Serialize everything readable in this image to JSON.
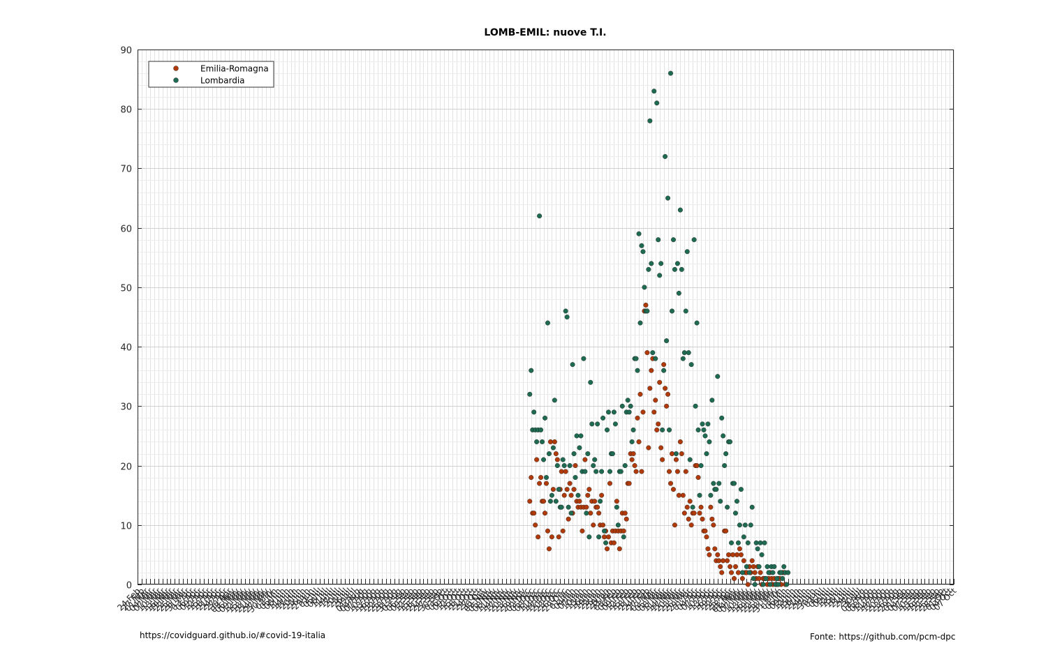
{
  "footer": {
    "left_text": "https://covidguard.github.io/#covid-19-italia",
    "right_text": "Fonte: https://github.com/pcm-dpc"
  },
  "chart_data": {
    "type": "scatter",
    "title": "LOMB-EMIL: nuove T.I.",
    "xlabel": "",
    "ylabel": "",
    "ylim": [
      0,
      90
    ],
    "yticks": [
      0,
      10,
      20,
      30,
      40,
      50,
      60,
      70,
      80,
      90
    ],
    "grid": true,
    "legend_position": "top-left",
    "x_axis": "date",
    "x_range": [
      "2020-02-24",
      "2021-10-07"
    ],
    "x_tick_labels": [
      "24 Feb",
      "07 Oct"
    ],
    "x_data_start": "2020-12-04",
    "series": [
      {
        "name": "Emilia-Romagna",
        "color": "#b03a0a",
        "values": [
          14,
          18,
          12,
          12,
          10,
          21,
          8,
          17,
          18,
          14,
          14,
          12,
          17,
          9,
          6,
          24,
          8,
          16,
          24,
          22,
          21,
          8,
          16,
          19,
          9,
          15,
          19,
          16,
          11,
          17,
          15,
          12,
          16,
          20,
          14,
          13,
          14,
          13,
          9,
          13,
          21,
          13,
          15,
          16,
          12,
          14,
          10,
          14,
          13,
          13,
          12,
          10,
          15,
          10,
          8,
          9,
          6,
          8,
          17,
          7,
          9,
          7,
          9,
          14,
          9,
          6,
          9,
          12,
          9,
          12,
          11,
          17,
          17,
          22,
          21,
          22,
          20,
          19,
          28,
          24,
          32,
          19,
          29,
          46,
          47,
          39,
          23,
          33,
          36,
          38,
          29,
          31,
          26,
          27,
          34,
          23,
          21,
          37,
          33,
          30,
          32,
          19,
          17,
          22,
          16,
          10,
          21,
          19,
          15,
          24,
          22,
          15,
          12,
          19,
          13,
          11,
          14,
          10,
          12,
          12,
          20,
          20,
          18,
          12,
          13,
          11,
          9,
          9,
          8,
          6,
          5,
          13,
          11,
          10,
          6,
          4,
          5,
          4,
          3,
          2,
          4,
          9,
          9,
          4,
          5,
          3,
          2,
          5,
          1,
          3,
          5,
          2,
          6,
          5,
          1,
          4,
          2,
          2,
          0,
          3,
          2,
          4,
          3,
          2,
          1,
          3,
          1,
          2,
          0,
          1,
          1,
          1,
          0,
          1,
          2,
          1,
          0,
          1,
          0,
          0,
          1,
          1,
          0,
          2,
          2,
          0
        ]
      },
      {
        "name": "Lombardia",
        "color": "#1f6a52",
        "values": [
          32,
          36,
          26,
          29,
          26,
          24,
          26,
          62,
          26,
          24,
          21,
          28,
          18,
          44,
          22,
          14,
          15,
          23,
          31,
          14,
          20,
          16,
          13,
          13,
          21,
          20,
          46,
          45,
          13,
          20,
          12,
          37,
          22,
          18,
          25,
          15,
          23,
          25,
          19,
          38,
          19,
          12,
          22,
          8,
          34,
          27,
          20,
          21,
          19,
          27,
          8,
          14,
          19,
          28,
          9,
          7,
          26,
          29,
          19,
          22,
          22,
          29,
          27,
          13,
          10,
          19,
          19,
          30,
          8,
          20,
          29,
          31,
          29,
          30,
          24,
          26,
          38,
          38,
          36,
          59,
          44,
          57,
          56,
          50,
          46,
          46,
          53,
          78,
          54,
          39,
          83,
          38,
          81,
          58,
          52,
          54,
          26,
          36,
          72,
          41,
          65,
          26,
          86,
          46,
          58,
          53,
          22,
          54,
          49,
          63,
          53,
          38,
          39,
          46,
          56,
          39,
          21,
          37,
          13,
          58,
          30,
          44,
          26,
          15,
          20,
          27,
          26,
          25,
          22,
          27,
          24,
          15,
          31,
          17,
          16,
          16,
          35,
          17,
          14,
          28,
          25,
          20,
          22,
          13,
          24,
          24,
          7,
          17,
          17,
          12,
          14,
          7,
          10,
          16,
          2,
          8,
          10,
          3,
          7,
          2,
          10,
          13,
          1,
          0,
          7,
          6,
          3,
          7,
          5,
          0,
          7,
          1,
          3,
          2,
          0,
          3,
          2,
          3,
          0,
          1,
          0,
          2,
          2,
          1,
          3,
          2,
          0,
          2
        ]
      }
    ]
  }
}
